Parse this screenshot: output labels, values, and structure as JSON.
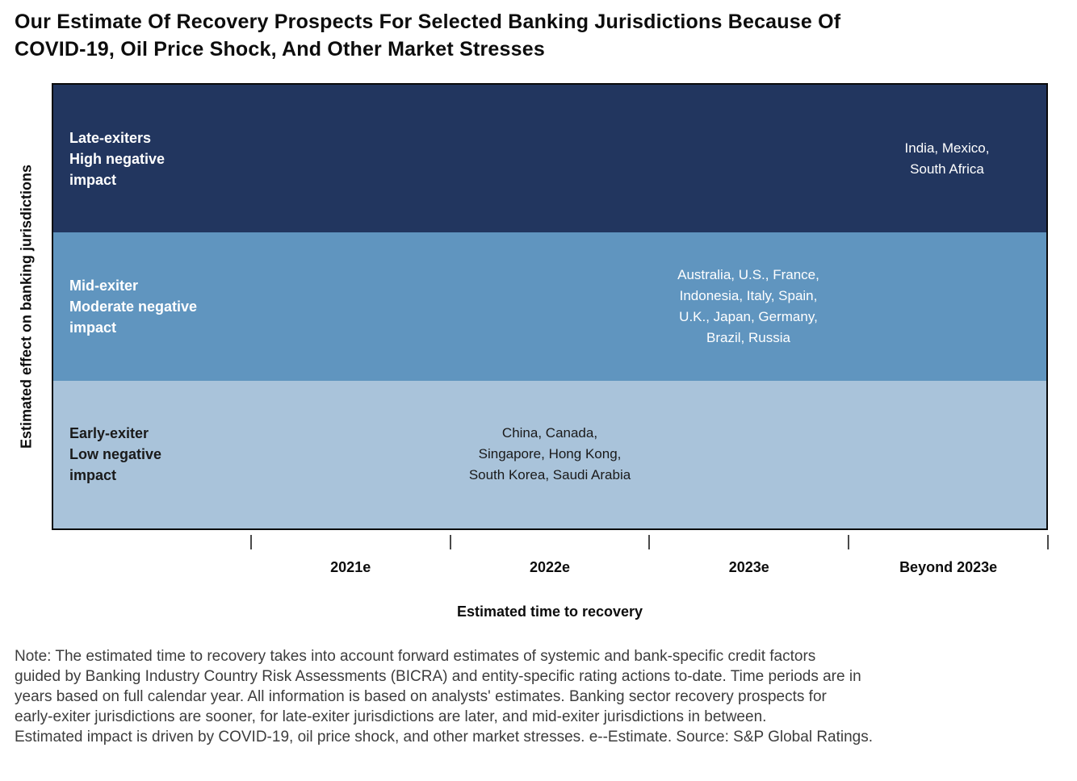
{
  "title_display": "Our Estimate Of Recovery Prospects For Selected Banking Jurisdictions Because Of\nCOVID-19, Oil Price Shock, And Other Market Stresses",
  "axis": {
    "x_title": "Estimated time to recovery",
    "y_title": "Estimated effect on banking jurisdictions",
    "tick_labels": [
      "2021e",
      "2022e",
      "2023e",
      "Beyond 2023e"
    ]
  },
  "display": {
    "bands": [
      {
        "label_text": "Late-exiters\nHigh negative\nimpact",
        "countries_text": "India, Mexico,\nSouth Africa",
        "bg": "#22365F",
        "fg": "#FFFFFF"
      },
      {
        "label_text": "Mid-exiter\nModerate negative\nimpact",
        "countries_text": "Australia, U.S., France,\nIndonesia, Italy, Spain,\nU.K., Japan, Germany,\nBrazil, Russia",
        "bg": "#6095BF",
        "fg": "#FFFFFF"
      },
      {
        "label_text": "Early-exiter\nLow negative\nimpact",
        "countries_text": "China, Canada,\nSingapore, Hong Kong,\nSouth Korea, Saudi Arabia",
        "bg": "#A9C3DA",
        "fg": "#1A1A1A"
      }
    ]
  },
  "note": "Note: The estimated time to recovery takes into account forward estimates of systemic and bank-specific credit factors\nguided by Banking Industry Country Risk Assessments (BICRA) and entity-specific rating actions to-date. Time periods are in\nyears based on full calendar year. All information is based on analysts' estimates. Banking sector recovery prospects for\nearly-exiter jurisdictions are sooner, for late-exiter jurisdictions are later, and mid-exiter jurisdictions in between.\nEstimated impact is driven by COVID-19, oil price shock, and other market stresses. e--Estimate. Source: S&P Global Ratings.",
  "chart_data": {
    "type": "table",
    "title": "Our Estimate Of Recovery Prospects For Selected Banking Jurisdictions Because Of COVID-19, Oil Price Shock, And Other Market Stresses",
    "xlabel": "Estimated time to recovery",
    "ylabel": "Estimated effect on banking jurisdictions",
    "x_categories": [
      "2021e",
      "2022e",
      "2023e",
      "Beyond 2023e"
    ],
    "grid": false,
    "legend": "none",
    "bands": [
      {
        "label": "Late-exiters",
        "impact": "High negative impact",
        "estimated_recovery": "Beyond 2023e",
        "jurisdictions": [
          "India",
          "Mexico",
          "South Africa"
        ],
        "color": "#22365F"
      },
      {
        "label": "Mid-exiter",
        "impact": "Moderate negative impact",
        "estimated_recovery": "2023e",
        "jurisdictions": [
          "Australia",
          "U.S.",
          "France",
          "Indonesia",
          "Italy",
          "Spain",
          "U.K.",
          "Japan",
          "Germany",
          "Brazil",
          "Russia"
        ],
        "color": "#6095BF"
      },
      {
        "label": "Early-exiter",
        "impact": "Low negative impact",
        "estimated_recovery": "2022e",
        "jurisdictions": [
          "China",
          "Canada",
          "Singapore",
          "Hong Kong",
          "South Korea",
          "Saudi Arabia"
        ],
        "color": "#A9C3DA"
      }
    ]
  }
}
